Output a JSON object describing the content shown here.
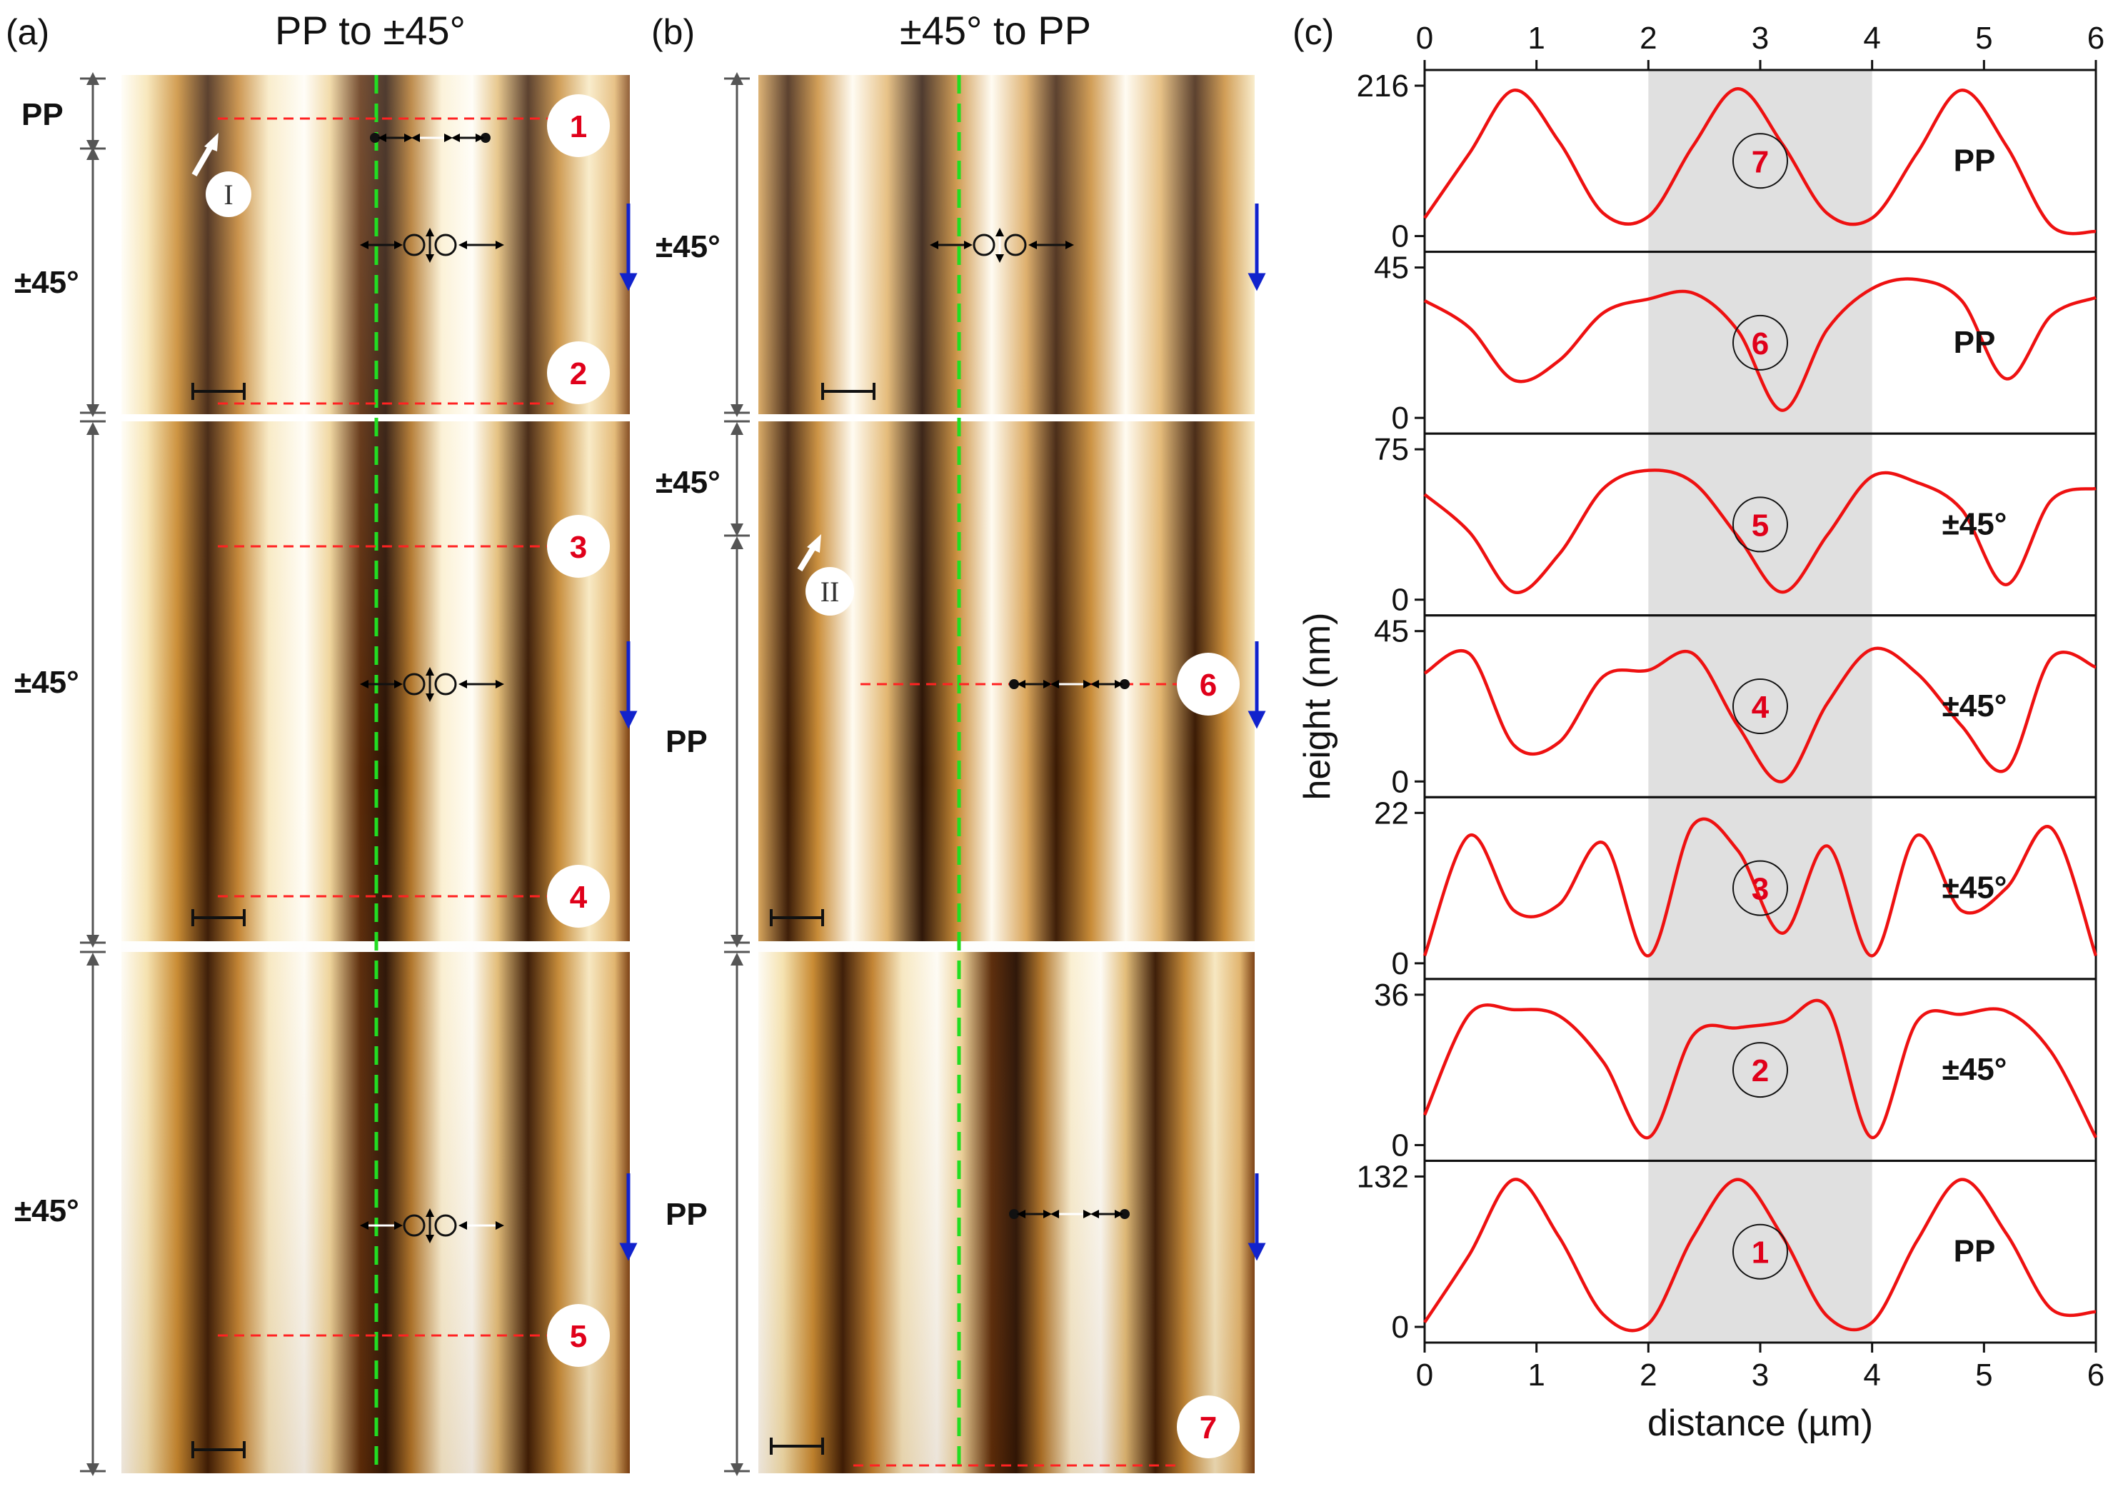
{
  "panels": {
    "a": {
      "label": "(a)",
      "title": "PP to ±45°",
      "sections": [
        {
          "text": "PP"
        },
        {
          "text": "±45°"
        },
        {
          "text": "±45°"
        },
        {
          "text": "±45°"
        }
      ],
      "markers": [
        "1",
        "2",
        "3",
        "4",
        "5"
      ],
      "arrow_label": "I"
    },
    "b": {
      "label": "(b)",
      "title": "±45° to PP",
      "sections": [
        {
          "text": "±45°"
        },
        {
          "text": "±45°"
        },
        {
          "text": "PP"
        },
        {
          "text": "PP"
        }
      ],
      "markers": [
        "6",
        "7"
      ],
      "arrow_label": "II"
    },
    "c": {
      "label": "(c)"
    }
  },
  "chart_data": {
    "type": "line",
    "title": "",
    "xlabel": "distance (µm)",
    "ylabel": "height (nm)",
    "xlim": [
      0,
      6
    ],
    "x_ticks": [
      "0",
      "1",
      "2",
      "3",
      "4",
      "5",
      "6"
    ],
    "shaded_x_range": [
      2,
      4
    ],
    "series": [
      {
        "name": "7",
        "label": "PP",
        "ymax": 216,
        "ticks": [
          "216",
          "0"
        ],
        "y": [
          0.12,
          0.55,
          0.97,
          0.63,
          0.15,
          0.13,
          0.6,
          0.98,
          0.61,
          0.15,
          0.12,
          0.55,
          0.97,
          0.6,
          0.07,
          0.03
        ]
      },
      {
        "name": "6",
        "label": "PP",
        "ymax": 45,
        "ticks": [
          "45",
          "0"
        ],
        "y": [
          0.78,
          0.6,
          0.25,
          0.38,
          0.7,
          0.79,
          0.83,
          0.58,
          0.05,
          0.59,
          0.86,
          0.92,
          0.78,
          0.26,
          0.68,
          0.8
        ]
      },
      {
        "name": "5",
        "label": "±45°",
        "ymax": 75,
        "ticks": [
          "75",
          "0"
        ],
        "y": [
          0.7,
          0.45,
          0.05,
          0.3,
          0.74,
          0.86,
          0.78,
          0.42,
          0.05,
          0.43,
          0.82,
          0.78,
          0.6,
          0.1,
          0.66,
          0.74
        ]
      },
      {
        "name": "4",
        "label": "±45°",
        "ymax": 45,
        "ticks": [
          "45",
          "0"
        ],
        "y": [
          0.72,
          0.85,
          0.24,
          0.26,
          0.7,
          0.74,
          0.85,
          0.37,
          0.0,
          0.52,
          0.88,
          0.72,
          0.37,
          0.08,
          0.82,
          0.76
        ]
      },
      {
        "name": "3",
        "label": "±45°",
        "ymax": 22,
        "ticks": [
          "22",
          "0"
        ],
        "y": [
          0.05,
          0.85,
          0.35,
          0.39,
          0.8,
          0.05,
          0.92,
          0.75,
          0.2,
          0.78,
          0.05,
          0.85,
          0.35,
          0.5,
          0.9,
          0.05
        ]
      },
      {
        "name": "2",
        "label": "±45°",
        "ymax": 36,
        "ticks": [
          "36",
          "0"
        ],
        "y": [
          0.2,
          0.87,
          0.9,
          0.86,
          0.55,
          0.05,
          0.73,
          0.78,
          0.82,
          0.92,
          0.05,
          0.82,
          0.87,
          0.89,
          0.62,
          0.05
        ]
      },
      {
        "name": "1",
        "label": "PP",
        "ymax": 132,
        "ticks": [
          "132",
          "0"
        ],
        "y": [
          0.03,
          0.48,
          0.98,
          0.6,
          0.08,
          0.02,
          0.6,
          0.98,
          0.6,
          0.07,
          0.03,
          0.57,
          0.98,
          0.62,
          0.12,
          0.1
        ]
      }
    ]
  }
}
